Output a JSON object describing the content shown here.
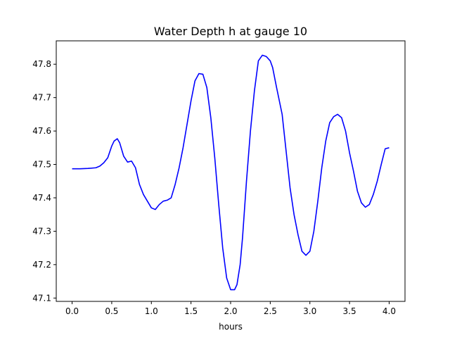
{
  "chart_data": {
    "type": "line",
    "title": "Water Depth h at gauge 10",
    "xlabel": "hours",
    "ylabel": "",
    "xlim": [
      -0.2,
      4.2
    ],
    "ylim": [
      47.09,
      47.87
    ],
    "xticks": [
      0.0,
      0.5,
      1.0,
      1.5,
      2.0,
      2.5,
      3.0,
      3.5,
      4.0
    ],
    "xtick_labels": [
      "0.0",
      "0.5",
      "1.0",
      "1.5",
      "2.0",
      "2.5",
      "3.0",
      "3.5",
      "4.0"
    ],
    "yticks": [
      47.1,
      47.2,
      47.3,
      47.4,
      47.5,
      47.6,
      47.7,
      47.8
    ],
    "ytick_labels": [
      "47.1",
      "47.2",
      "47.3",
      "47.4",
      "47.5",
      "47.6",
      "47.7",
      "47.8"
    ],
    "grid": false,
    "series": [
      {
        "color": "#0000ff",
        "x": [
          0.0,
          0.1,
          0.2,
          0.3,
          0.35,
          0.4,
          0.45,
          0.5,
          0.53,
          0.57,
          0.6,
          0.65,
          0.7,
          0.75,
          0.8,
          0.85,
          0.9,
          0.95,
          1.0,
          1.05,
          1.1,
          1.15,
          1.2,
          1.25,
          1.3,
          1.35,
          1.4,
          1.45,
          1.5,
          1.55,
          1.6,
          1.65,
          1.7,
          1.75,
          1.8,
          1.85,
          1.9,
          1.95,
          2.0,
          2.05,
          2.08,
          2.12,
          2.15,
          2.2,
          2.25,
          2.3,
          2.35,
          2.4,
          2.45,
          2.5,
          2.53,
          2.58,
          2.65,
          2.7,
          2.75,
          2.8,
          2.85,
          2.9,
          2.95,
          3.0,
          3.05,
          3.1,
          3.15,
          3.2,
          3.25,
          3.3,
          3.35,
          3.4,
          3.45,
          3.5,
          3.55,
          3.6,
          3.65,
          3.7,
          3.75,
          3.8,
          3.85,
          3.9,
          3.95,
          4.0
        ],
        "y": [
          47.487,
          47.487,
          47.488,
          47.49,
          47.495,
          47.505,
          47.52,
          47.555,
          47.57,
          47.577,
          47.565,
          47.525,
          47.507,
          47.51,
          47.49,
          47.44,
          47.41,
          47.39,
          47.37,
          47.365,
          47.38,
          47.39,
          47.393,
          47.4,
          47.44,
          47.49,
          47.55,
          47.62,
          47.69,
          47.75,
          47.772,
          47.77,
          47.73,
          47.64,
          47.52,
          47.38,
          47.25,
          47.16,
          47.125,
          47.125,
          47.14,
          47.2,
          47.28,
          47.45,
          47.6,
          47.72,
          47.81,
          47.827,
          47.823,
          47.81,
          47.79,
          47.73,
          47.65,
          47.54,
          47.43,
          47.35,
          47.29,
          47.24,
          47.228,
          47.24,
          47.3,
          47.39,
          47.49,
          47.57,
          47.625,
          47.643,
          47.65,
          47.64,
          47.6,
          47.535,
          47.48,
          47.42,
          47.385,
          47.372,
          47.38,
          47.41,
          47.45,
          47.5,
          47.547,
          47.55
        ]
      }
    ]
  }
}
